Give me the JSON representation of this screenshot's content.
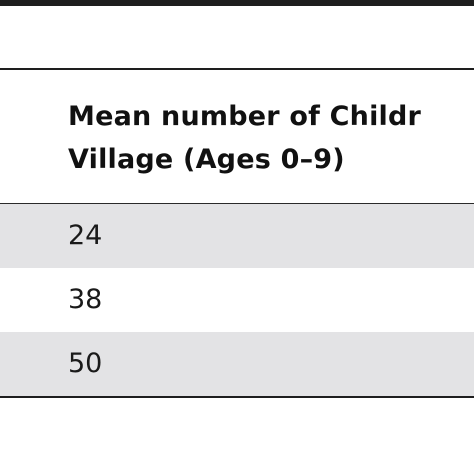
{
  "table": {
    "header": {
      "line1": "Mean number of Childr",
      "line2": "Village (Ages 0–9)"
    },
    "rows": [
      {
        "value": "24"
      },
      {
        "value": "38"
      },
      {
        "value": "50"
      }
    ]
  }
}
